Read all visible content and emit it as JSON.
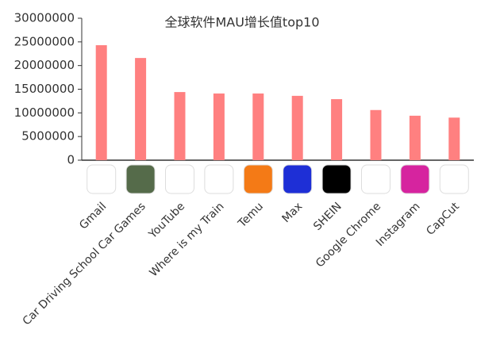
{
  "chart_data": {
    "type": "bar",
    "title": "全球软件MAU增长值top10",
    "categories": [
      "Gmail",
      "Car Driving School Car Games",
      "YouTube",
      "Where is my Train",
      "Temu",
      "Max",
      "SHEIN",
      "Google Chrome",
      "Instagram",
      "CapCut"
    ],
    "values": [
      24300000,
      21600000,
      14400000,
      14100000,
      14100000,
      13600000,
      12900000,
      10600000,
      9400000,
      9000000
    ],
    "color": "#ff8080",
    "ylim": [
      0,
      30000000
    ],
    "yticks": [
      0,
      5000000,
      10000000,
      15000000,
      20000000,
      25000000,
      30000000
    ]
  }
}
